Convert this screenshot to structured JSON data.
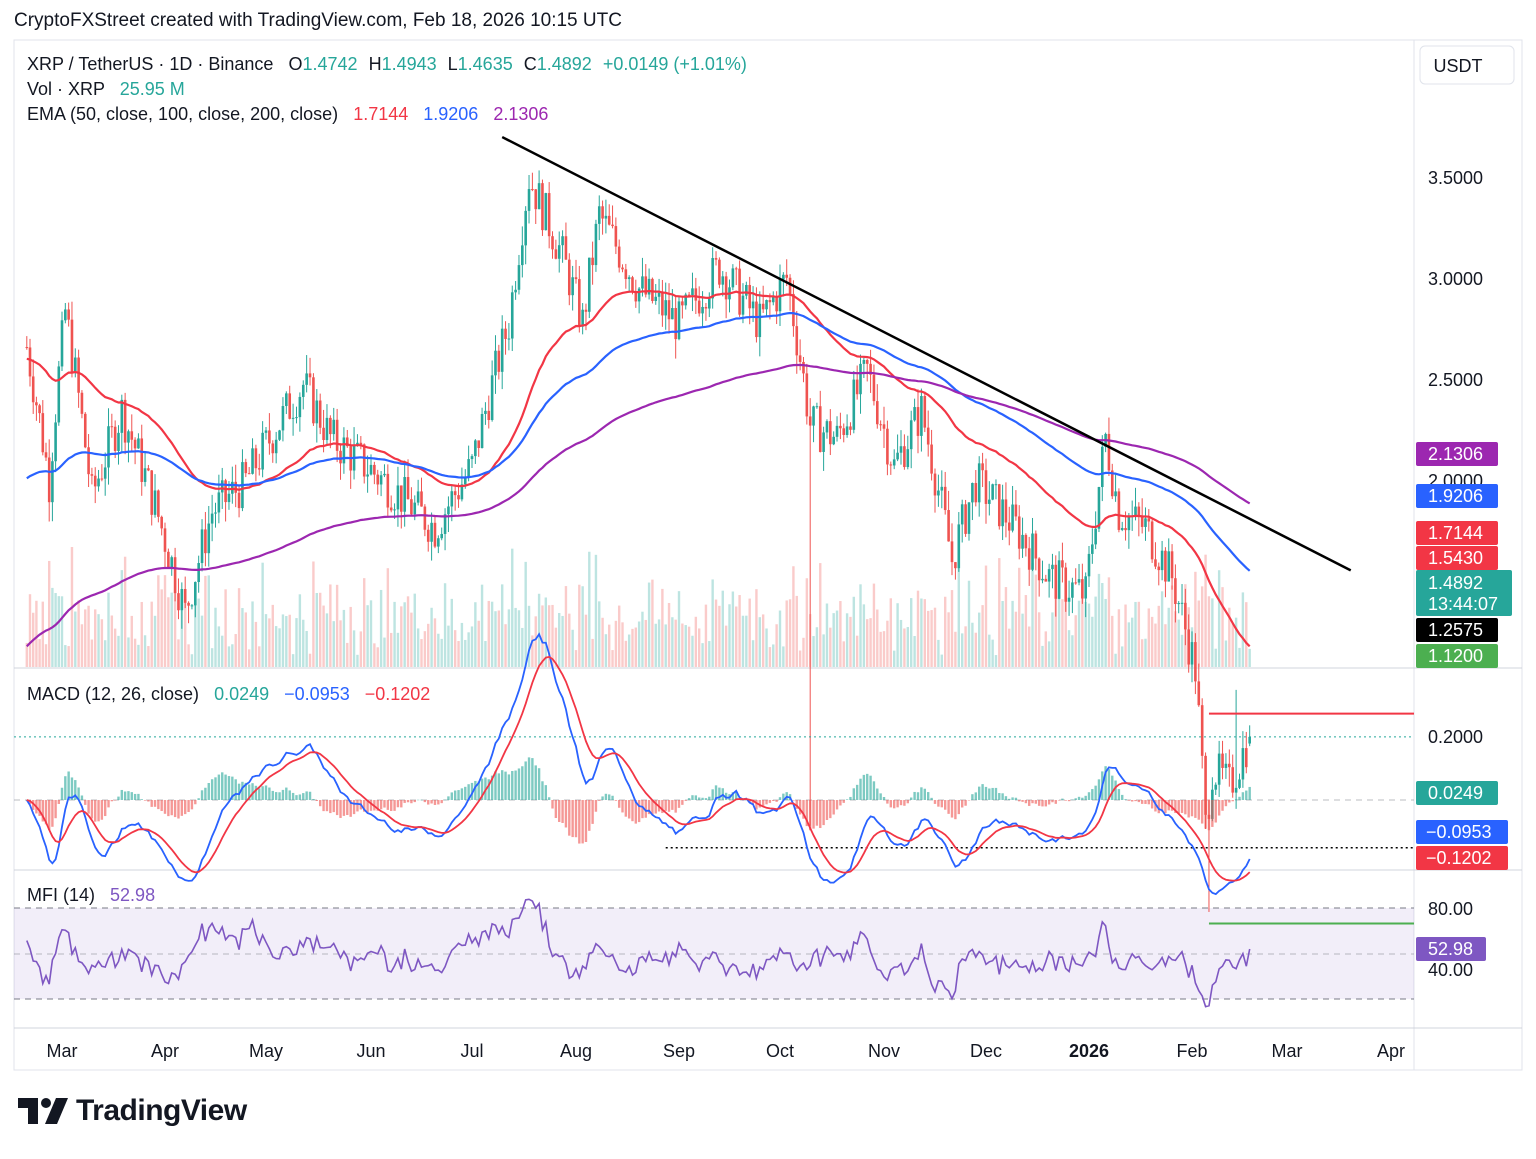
{
  "header": "CryptoFXStreet created with TradingView.com, Feb 18, 2026 10:15 UTC",
  "brand": "TradingView",
  "colors": {
    "up": "#26a69a",
    "down": "#ef5350",
    "ema50": "#f23645",
    "ema100": "#2962ff",
    "ema200": "#9c27b0",
    "macd": "#2962ff",
    "signal": "#f23645",
    "mfi": "#7e57c2",
    "trendline": "#000000",
    "resistance": "#f23645",
    "support": "#4caf50",
    "pivot": "#000000"
  },
  "legend": {
    "symbol": "XRP / TetherUS · 1D · Binance",
    "o_label": "O",
    "o": "1.4742",
    "h_label": "H",
    "h": "1.4943",
    "l_label": "L",
    "l": "1.4635",
    "c_label": "C",
    "c": "1.4892",
    "chg": "+0.0149 (+1.01%)",
    "vol_label": "Vol · XRP",
    "vol": "25.95 M",
    "ema_label": "EMA (50, close, 100, close, 200, close)",
    "ema50": "1.7144",
    "ema100": "1.9206",
    "ema200": "2.1306"
  },
  "macd_legend": {
    "label": "MACD (12, 26, close)",
    "hist": "0.0249",
    "macd": "−0.0953",
    "signal": "−0.1202"
  },
  "mfi_legend": {
    "label": "MFI (14)",
    "value": "52.98"
  },
  "price_axis": {
    "unit": "USDT",
    "ticks": [
      "3.5000",
      "3.0000",
      "2.5000",
      "2.0000"
    ]
  },
  "macd_axis": {
    "ticks": [
      "0.2000"
    ]
  },
  "mfi_axis": {
    "ticks": [
      "80.00",
      "40.00"
    ]
  },
  "time_axis": [
    "Mar",
    "Apr",
    "May",
    "Jun",
    "Jul",
    "Aug",
    "Sep",
    "Oct",
    "Nov",
    "Dec",
    "2026",
    "Feb",
    "Mar",
    "Apr"
  ],
  "badges": {
    "ema200": "2.1306",
    "ema100": "1.9206",
    "ema50": "1.7144",
    "resistance": "1.5430",
    "last_price": "1.4892",
    "countdown": "13:44:07",
    "pivot": "1.2575",
    "support": "1.1200",
    "hist": "0.0249",
    "macd": "−0.0953",
    "signal": "−0.1202",
    "mfi": "52.98"
  },
  "chart_data": {
    "type": "candlestick",
    "symbol": "XRP / TetherUS",
    "timeframe": "1D",
    "exchange": "Binance",
    "ohlc_last": {
      "open": 1.4742,
      "high": 1.4943,
      "low": 1.4635,
      "close": 1.4892,
      "change": 0.0149,
      "change_pct": 1.01
    },
    "volume_last": "25.95M",
    "close_path": [
      {
        "date": "2025-02-18",
        "close": 2.7
      },
      {
        "date": "2025-02-25",
        "close": 2.2
      },
      {
        "date": "2025-03-02",
        "close": 2.85
      },
      {
        "date": "2025-03-10",
        "close": 2.15
      },
      {
        "date": "2025-03-19",
        "close": 2.45
      },
      {
        "date": "2025-03-29",
        "close": 2.12
      },
      {
        "date": "2025-04-07",
        "close": 1.8
      },
      {
        "date": "2025-04-15",
        "close": 2.1
      },
      {
        "date": "2025-04-25",
        "close": 2.2
      },
      {
        "date": "2025-05-12",
        "close": 2.55
      },
      {
        "date": "2025-05-20",
        "close": 2.35
      },
      {
        "date": "2025-06-05",
        "close": 2.2
      },
      {
        "date": "2025-06-20",
        "close": 2.05
      },
      {
        "date": "2025-07-01",
        "close": 2.25
      },
      {
        "date": "2025-07-12",
        "close": 2.8
      },
      {
        "date": "2025-07-18",
        "close": 3.5
      },
      {
        "date": "2025-07-28",
        "close": 3.1
      },
      {
        "date": "2025-08-03",
        "close": 2.8
      },
      {
        "date": "2025-08-08",
        "close": 3.3
      },
      {
        "date": "2025-08-20",
        "close": 2.95
      },
      {
        "date": "2025-09-01",
        "close": 2.8
      },
      {
        "date": "2025-09-13",
        "close": 3.05
      },
      {
        "date": "2025-09-25",
        "close": 2.8
      },
      {
        "date": "2025-10-03",
        "close": 3.0
      },
      {
        "date": "2025-10-10",
        "close": 2.4
      },
      {
        "date": "2025-10-18",
        "close": 2.35
      },
      {
        "date": "2025-10-27",
        "close": 2.6
      },
      {
        "date": "2025-11-04",
        "close": 2.25
      },
      {
        "date": "2025-11-12",
        "close": 2.45
      },
      {
        "date": "2025-11-21",
        "close": 1.95
      },
      {
        "date": "2025-11-28",
        "close": 2.2
      },
      {
        "date": "2025-12-10",
        "close": 2.05
      },
      {
        "date": "2025-12-20",
        "close": 1.9
      },
      {
        "date": "2025-12-31",
        "close": 1.85
      },
      {
        "date": "2026-01-06",
        "close": 2.35
      },
      {
        "date": "2026-01-10",
        "close": 2.1
      },
      {
        "date": "2026-01-18",
        "close": 2.05
      },
      {
        "date": "2026-01-26",
        "close": 1.9
      },
      {
        "date": "2026-02-02",
        "close": 1.65
      },
      {
        "date": "2026-02-05",
        "close": 1.3
      },
      {
        "date": "2026-02-07",
        "close": 1.42
      },
      {
        "date": "2026-02-12",
        "close": 1.38
      },
      {
        "date": "2026-02-18",
        "close": 1.4892
      }
    ],
    "ema": [
      {
        "name": "EMA 50",
        "last": 1.7144
      },
      {
        "name": "EMA 100",
        "last": 1.9206
      },
      {
        "name": "EMA 200",
        "last": 2.1306
      }
    ],
    "levels": [
      {
        "label": "1.5430",
        "value": 1.543,
        "kind": "resistance"
      },
      {
        "label": "1.2575",
        "value": 1.2575,
        "kind": "pivot"
      },
      {
        "label": "1.1200",
        "value": 1.12,
        "kind": "support"
      }
    ],
    "trendline": [
      {
        "date": "2025-07-10",
        "price": 3.72
      },
      {
        "date": "2026-03-20",
        "price": 1.92
      }
    ],
    "macd": {
      "params": "12, 26, close",
      "histogram": 0.0249,
      "macd": -0.0953,
      "signal": -0.1202
    },
    "mfi": {
      "period": 14,
      "value": 52.98,
      "upper_band": 80,
      "lower_band": 20
    },
    "x_axis_labels": [
      "Mar",
      "Apr",
      "May",
      "Jun",
      "Jul",
      "Aug",
      "Sep",
      "Oct",
      "Nov",
      "Dec",
      "2026",
      "Feb",
      "Mar",
      "Apr"
    ],
    "y_axis_ticks": [
      3.5,
      3.0,
      2.5,
      2.0
    ],
    "y_scale": "log",
    "grid": false
  }
}
